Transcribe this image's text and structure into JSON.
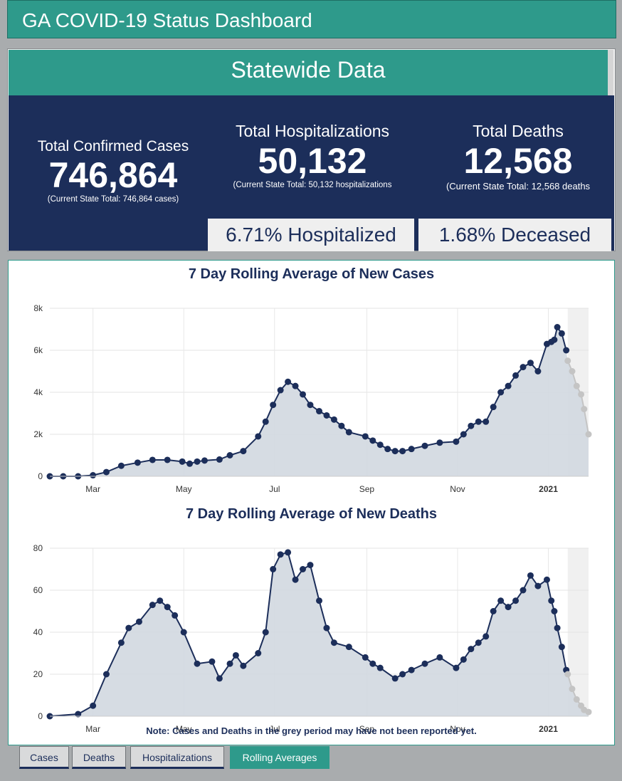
{
  "header": {
    "title": "GA COVID-19 Status Dashboard"
  },
  "statewide": {
    "title": "Statewide Data",
    "cases": {
      "label": "Total Confirmed Cases",
      "value": "746,864",
      "note": "(Current State Total: 746,864 cases)"
    },
    "hospitalizations": {
      "label": "Total Hospitalizations",
      "value": "50,132",
      "note": "(Current State Total: 50,132 hospitalizations"
    },
    "deaths": {
      "label": "Total Deaths",
      "value": "12,568",
      "note": "(Current State Total: 12,568 deaths"
    },
    "hospitalized_pct": "6.71% Hospitalized",
    "deceased_pct": "1.68% Deceased"
  },
  "colors": {
    "teal": "#2e9a8b",
    "navy": "#1c2e5a",
    "area": "#d2d8e0",
    "grey_points": "#c4c4c4",
    "grey_band": "#f0f0f0"
  },
  "note": "Note: Cases and Deaths in the grey period may have not been reported yet.",
  "tabs": [
    {
      "label": "Cases",
      "active": false
    },
    {
      "label": "Deaths",
      "active": false
    },
    {
      "label": "Hospitalizations",
      "active": false
    },
    {
      "label": "Rolling Averages",
      "active": true
    }
  ],
  "chart_data": [
    {
      "type": "area",
      "title": "7 Day Rolling Average of New Cases",
      "x_ticks": [
        "Mar",
        "May",
        "Jul",
        "Sep",
        "Nov",
        "2021"
      ],
      "x_tick_dates": [
        "2020-03-01",
        "2020-05-01",
        "2020-07-01",
        "2020-09-01",
        "2020-11-01",
        "2021-01-01"
      ],
      "y_ticks": [
        "0",
        "2k",
        "4k",
        "6k",
        "8k"
      ],
      "ylim": [
        0,
        8000
      ],
      "xlim": [
        "2020-02-01",
        "2021-01-28"
      ],
      "grey_period_start": "2021-01-14",
      "grid": true,
      "series": [
        {
          "x": [
            "2020-02-01",
            "2020-02-10",
            "2020-02-20",
            "2020-03-01",
            "2020-03-10",
            "2020-03-20",
            "2020-03-31",
            "2020-04-10",
            "2020-04-20",
            "2020-04-30",
            "2020-05-05",
            "2020-05-10",
            "2020-05-15",
            "2020-05-25",
            "2020-06-01",
            "2020-06-10",
            "2020-06-20",
            "2020-06-25",
            "2020-06-30",
            "2020-07-05",
            "2020-07-10",
            "2020-07-15",
            "2020-07-20",
            "2020-07-25",
            "2020-07-31",
            "2020-08-05",
            "2020-08-10",
            "2020-08-15",
            "2020-08-20",
            "2020-08-31",
            "2020-09-05",
            "2020-09-10",
            "2020-09-15",
            "2020-09-20",
            "2020-09-25",
            "2020-10-01",
            "2020-10-10",
            "2020-10-20",
            "2020-10-31",
            "2020-11-05",
            "2020-11-10",
            "2020-11-15",
            "2020-11-20",
            "2020-11-25",
            "2020-11-30",
            "2020-12-05",
            "2020-12-10",
            "2020-12-15",
            "2020-12-20",
            "2020-12-25",
            "2020-12-31",
            "2021-01-03",
            "2021-01-05",
            "2021-01-07",
            "2021-01-10",
            "2021-01-13"
          ],
          "y": [
            0,
            0,
            0,
            50,
            200,
            500,
            650,
            780,
            780,
            700,
            600,
            700,
            750,
            800,
            1000,
            1200,
            1900,
            2600,
            3400,
            4100,
            4500,
            4300,
            3900,
            3400,
            3100,
            2900,
            2700,
            2400,
            2100,
            1900,
            1700,
            1500,
            1300,
            1200,
            1200,
            1300,
            1450,
            1600,
            1650,
            2000,
            2400,
            2600,
            2600,
            3300,
            4000,
            4300,
            4800,
            5200,
            5400,
            5000,
            6300,
            6400,
            6500,
            7100,
            6800,
            6000
          ]
        },
        {
          "name": "grey period",
          "x": [
            "2021-01-14",
            "2021-01-17",
            "2021-01-20",
            "2021-01-23",
            "2021-01-25",
            "2021-01-28"
          ],
          "y": [
            5500,
            5000,
            4300,
            3900,
            3200,
            2000
          ]
        }
      ]
    },
    {
      "type": "area",
      "title": "7 Day Rolling Average of New Deaths",
      "x_ticks": [
        "Mar",
        "May",
        "Jul",
        "Sep",
        "Nov",
        "2021"
      ],
      "x_tick_dates": [
        "2020-03-01",
        "2020-05-01",
        "2020-07-01",
        "2020-09-01",
        "2020-11-01",
        "2021-01-01"
      ],
      "y_ticks": [
        "0",
        "20",
        "40",
        "60",
        "80"
      ],
      "ylim": [
        0,
        80
      ],
      "xlim": [
        "2020-02-01",
        "2021-01-28"
      ],
      "grey_period_start": "2021-01-14",
      "grid": true,
      "series": [
        {
          "x": [
            "2020-02-01",
            "2020-02-20",
            "2020-03-01",
            "2020-03-10",
            "2020-03-20",
            "2020-03-25",
            "2020-04-01",
            "2020-04-10",
            "2020-04-15",
            "2020-04-20",
            "2020-04-25",
            "2020-05-01",
            "2020-05-10",
            "2020-05-20",
            "2020-05-25",
            "2020-06-01",
            "2020-06-05",
            "2020-06-10",
            "2020-06-20",
            "2020-06-25",
            "2020-06-30",
            "2020-07-05",
            "2020-07-10",
            "2020-07-15",
            "2020-07-20",
            "2020-07-25",
            "2020-07-31",
            "2020-08-05",
            "2020-08-10",
            "2020-08-20",
            "2020-08-31",
            "2020-09-05",
            "2020-09-10",
            "2020-09-20",
            "2020-09-25",
            "2020-10-01",
            "2020-10-10",
            "2020-10-20",
            "2020-10-31",
            "2020-11-05",
            "2020-11-10",
            "2020-11-15",
            "2020-11-20",
            "2020-11-25",
            "2020-11-30",
            "2020-12-05",
            "2020-12-10",
            "2020-12-15",
            "2020-12-20",
            "2020-12-25",
            "2020-12-31",
            "2021-01-03",
            "2021-01-05",
            "2021-01-07",
            "2021-01-10",
            "2021-01-13"
          ],
          "y": [
            0,
            1,
            5,
            20,
            35,
            42,
            45,
            53,
            55,
            52,
            48,
            40,
            25,
            26,
            18,
            25,
            29,
            24,
            30,
            40,
            70,
            77,
            78,
            65,
            70,
            72,
            55,
            42,
            35,
            33,
            28,
            25,
            23,
            18,
            20,
            22,
            25,
            28,
            23,
            27,
            32,
            35,
            38,
            50,
            55,
            52,
            55,
            60,
            67,
            62,
            65,
            55,
            50,
            42,
            33,
            22
          ]
        },
        {
          "name": "grey period",
          "x": [
            "2021-01-14",
            "2021-01-17",
            "2021-01-20",
            "2021-01-23",
            "2021-01-25",
            "2021-01-28"
          ],
          "y": [
            20,
            13,
            8,
            5,
            3,
            2
          ]
        }
      ]
    }
  ]
}
